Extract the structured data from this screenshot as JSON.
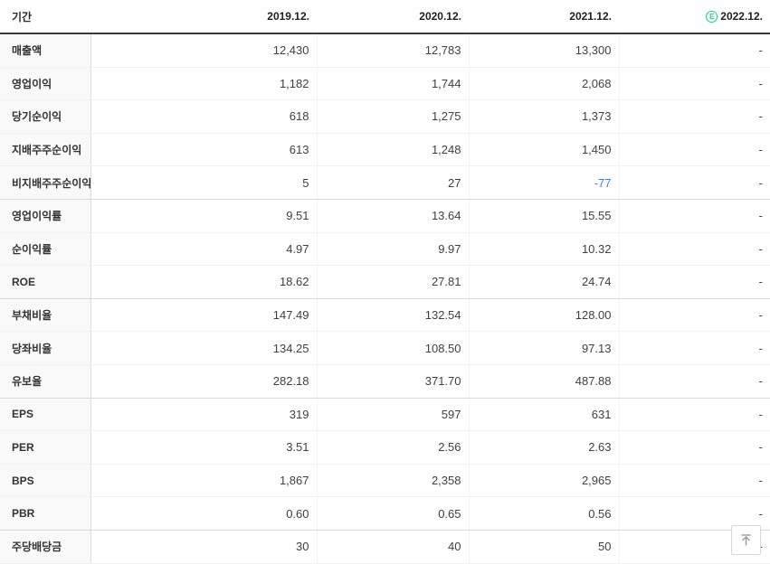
{
  "colors": {
    "estimate_green": "#28c88c",
    "negative_blue": "#4a7cd6",
    "header_rule": "#3a3a3a",
    "label_column_bg": "#f9f9f9"
  },
  "table": {
    "period_label": "기간",
    "columns": [
      {
        "label": "2019.12.",
        "estimate": false
      },
      {
        "label": "2020.12.",
        "estimate": false
      },
      {
        "label": "2021.12.",
        "estimate": false
      },
      {
        "label": "2022.12.",
        "estimate": true
      }
    ],
    "estimate_icon": "E",
    "rows": [
      {
        "label": "매출액",
        "values": [
          "12,430",
          "12,783",
          "13,300",
          "-"
        ],
        "group_end": false
      },
      {
        "label": "영업이익",
        "values": [
          "1,182",
          "1,744",
          "2,068",
          "-"
        ],
        "group_end": false
      },
      {
        "label": "당기순이익",
        "values": [
          "618",
          "1,275",
          "1,373",
          "-"
        ],
        "group_end": false
      },
      {
        "label": "지배주주순이익",
        "values": [
          "613",
          "1,248",
          "1,450",
          "-"
        ],
        "group_end": false
      },
      {
        "label": "비지배주주순이익",
        "values": [
          "5",
          "27",
          "-77",
          "-"
        ],
        "group_end": true
      },
      {
        "label": "영업이익률",
        "values": [
          "9.51",
          "13.64",
          "15.55",
          "-"
        ],
        "group_end": false
      },
      {
        "label": "순이익률",
        "values": [
          "4.97",
          "9.97",
          "10.32",
          "-"
        ],
        "group_end": false
      },
      {
        "label": "ROE",
        "values": [
          "18.62",
          "27.81",
          "24.74",
          "-"
        ],
        "group_end": true
      },
      {
        "label": "부채비율",
        "values": [
          "147.49",
          "132.54",
          "128.00",
          "-"
        ],
        "group_end": false
      },
      {
        "label": "당좌비율",
        "values": [
          "134.25",
          "108.50",
          "97.13",
          "-"
        ],
        "group_end": false
      },
      {
        "label": "유보율",
        "values": [
          "282.18",
          "371.70",
          "487.88",
          "-"
        ],
        "group_end": true
      },
      {
        "label": "EPS",
        "values": [
          "319",
          "597",
          "631",
          "-"
        ],
        "group_end": false
      },
      {
        "label": "PER",
        "values": [
          "3.51",
          "2.56",
          "2.63",
          "-"
        ],
        "group_end": false
      },
      {
        "label": "BPS",
        "values": [
          "1,867",
          "2,358",
          "2,965",
          "-"
        ],
        "group_end": false
      },
      {
        "label": "PBR",
        "values": [
          "0.60",
          "0.65",
          "0.56",
          "-"
        ],
        "group_end": true
      },
      {
        "label": "주당배당금",
        "values": [
          "30",
          "40",
          "50",
          "-"
        ],
        "group_end": false
      }
    ]
  }
}
